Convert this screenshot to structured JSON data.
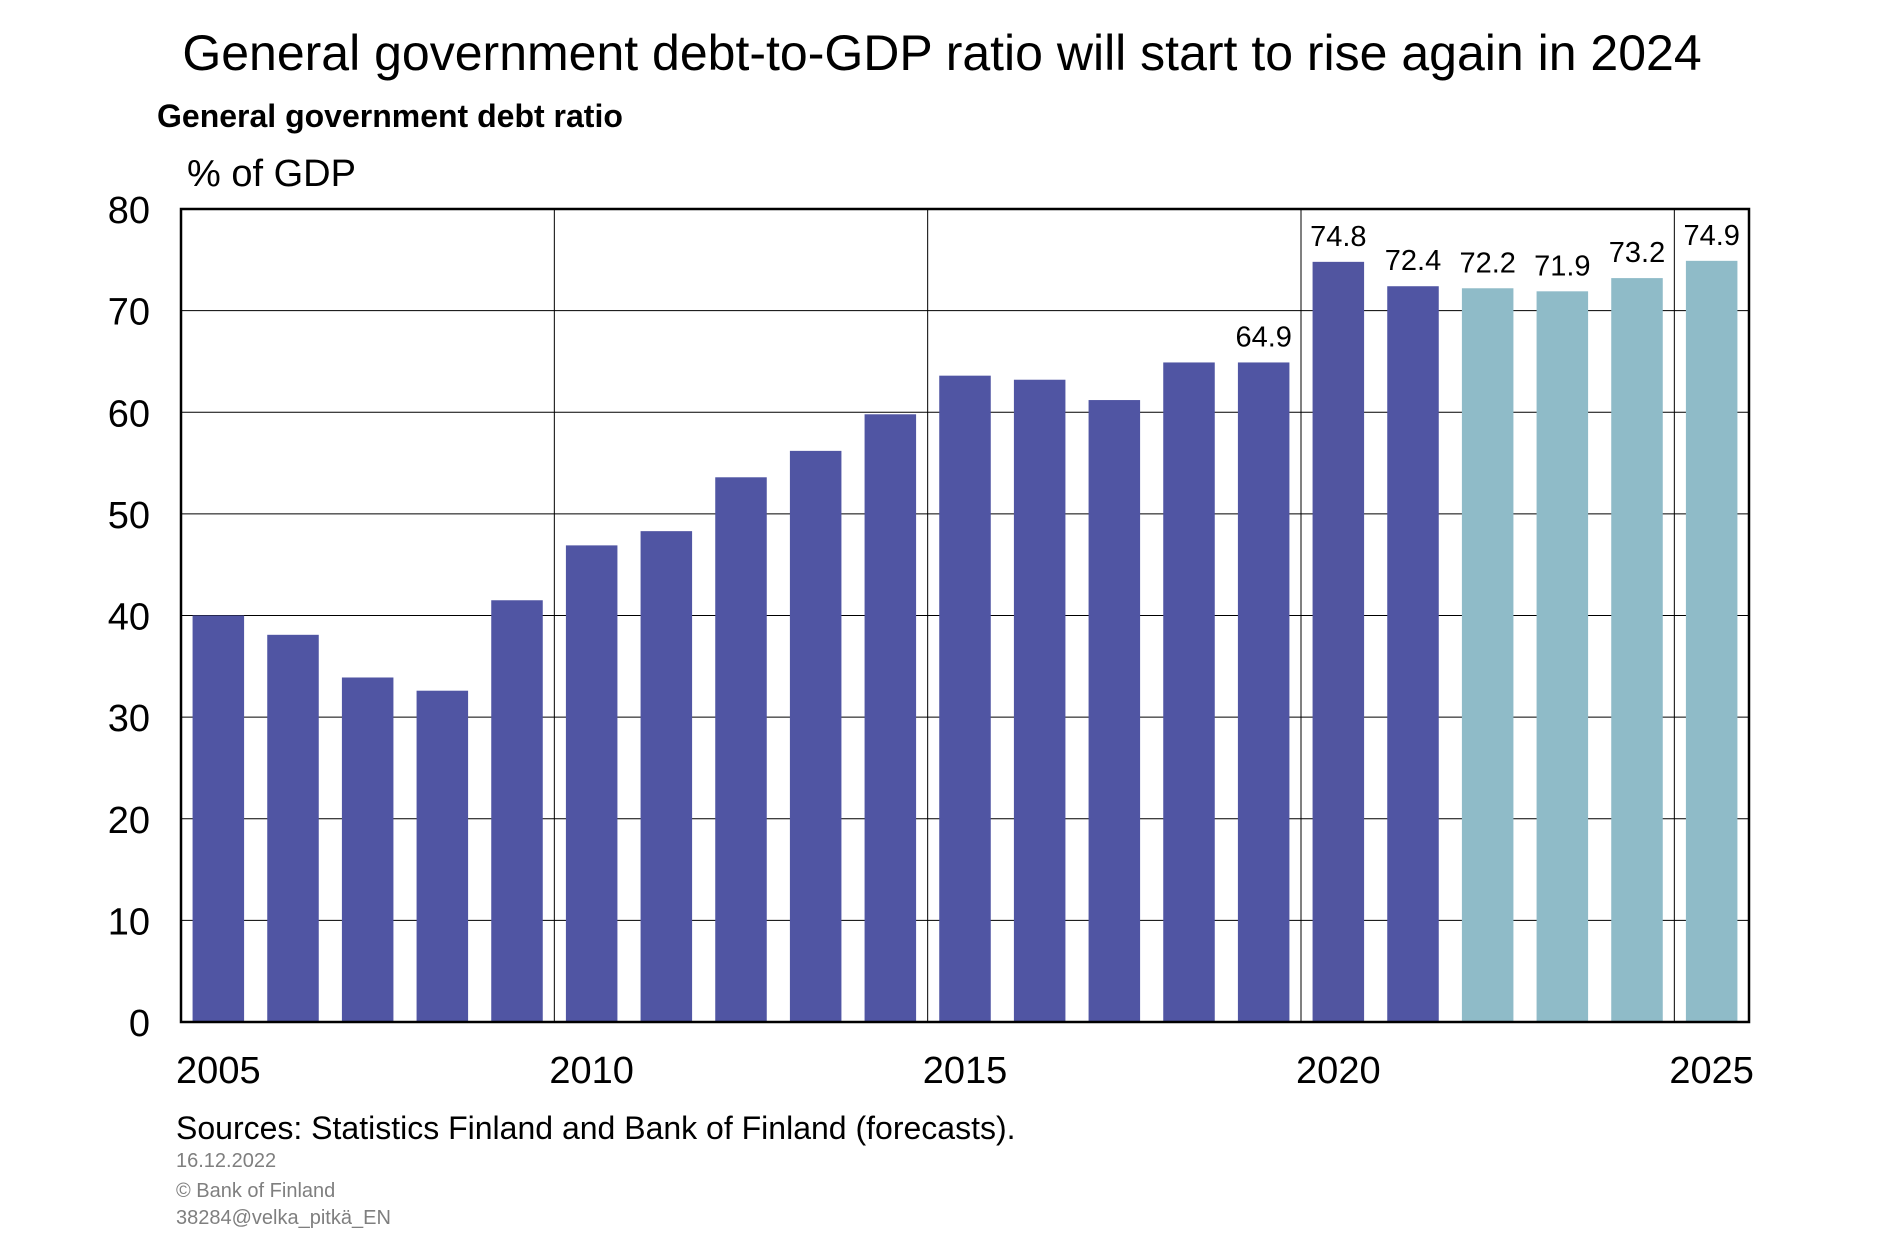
{
  "title": "General government debt-to-GDP ratio will start to rise again in 2024",
  "subtitle": "General government debt ratio",
  "unit_label": "% of GDP",
  "source": "Sources: Statistics Finland and Bank of Finland (forecasts).",
  "date": "16.12.2022",
  "copyright": "© Bank of Finland",
  "code": "38284@velka_pitkä_EN",
  "colors": {
    "actual": "#5055a3",
    "forecast": "#8fbbc8",
    "highlight": "#5155a0"
  },
  "chart_data": {
    "type": "bar",
    "title": "General government debt ratio",
    "ylabel": "% of GDP",
    "xlabel": "",
    "ylim": [
      0,
      80
    ],
    "yticks": [
      0,
      10,
      20,
      30,
      40,
      50,
      60,
      70,
      80
    ],
    "xtick_labels": [
      "2005",
      "2010",
      "2015",
      "2020",
      "2025"
    ],
    "grid": true,
    "categories": [
      "2005",
      "2006",
      "2007",
      "2008",
      "2009",
      "2010",
      "2011",
      "2012",
      "2013",
      "2014",
      "2015",
      "2016",
      "2017",
      "2018",
      "2019",
      "2020",
      "2021",
      "2022",
      "2023",
      "2024",
      "2025"
    ],
    "values": [
      40.0,
      38.1,
      33.9,
      32.6,
      41.5,
      46.9,
      48.3,
      53.6,
      56.2,
      59.8,
      63.6,
      63.2,
      61.2,
      64.9,
      64.9,
      74.8,
      72.4,
      72.2,
      71.9,
      73.2,
      74.9
    ],
    "forecast_from": "2022",
    "data_labels": {
      "2019": "64.9",
      "2020": "74.8",
      "2021": "72.4",
      "2022": "72.2",
      "2023": "71.9",
      "2024": "73.2",
      "2025": "74.9"
    }
  }
}
